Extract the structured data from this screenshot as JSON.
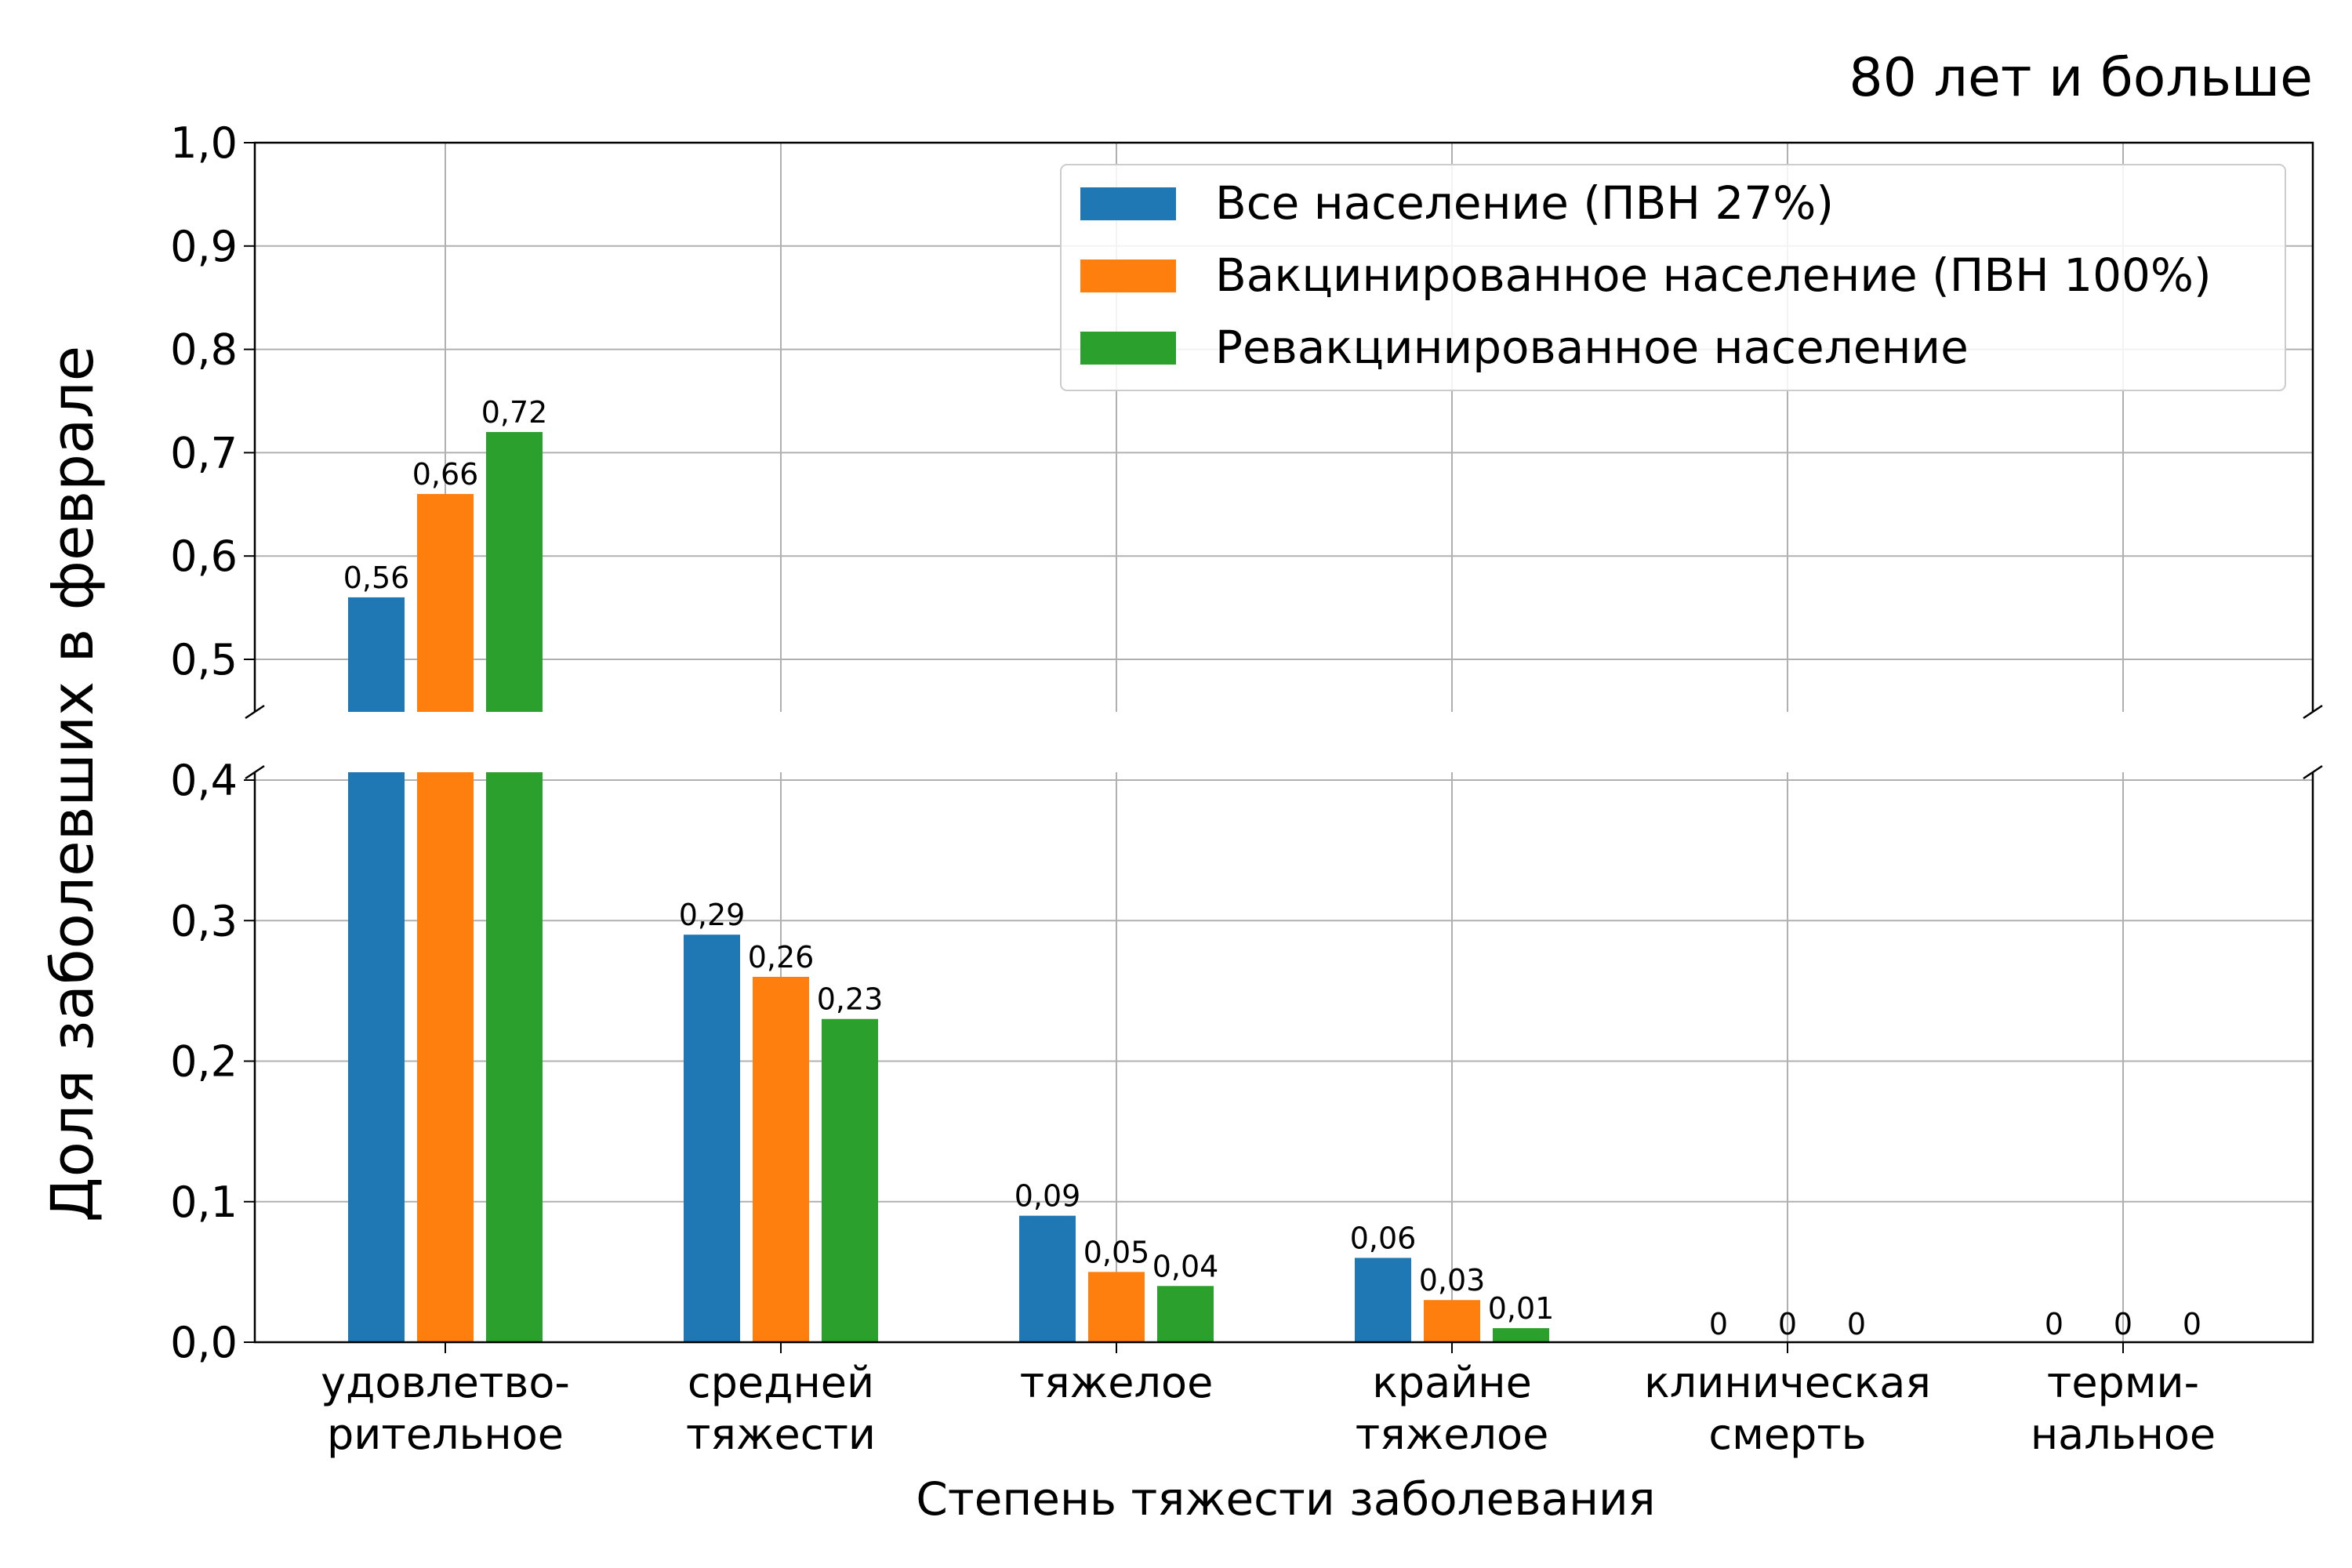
{
  "chart_data": {
    "type": "bar",
    "title": "80 лет и больше",
    "xlabel": "Степень тяжести заболевания",
    "ylabel": "Доля заболевших в феврале",
    "categories": [
      [
        "удовлетво-",
        "рительное"
      ],
      [
        "средней",
        "тяжести"
      ],
      [
        "тяжелое"
      ],
      [
        "крайне",
        "тяжелое"
      ],
      [
        "клиническая",
        "смерть"
      ],
      [
        "терми-",
        "нальное"
      ]
    ],
    "series": [
      {
        "name": "Все население (ПВН 27%)",
        "color": "#1f77b4",
        "values": [
          0.56,
          0.29,
          0.09,
          0.06,
          0,
          0
        ],
        "labels": [
          "0,56",
          "0,29",
          "0,09",
          "0,06",
          "0",
          "0"
        ]
      },
      {
        "name": "Вакцинированное население (ПВН 100%)",
        "color": "#ff7f0e",
        "values": [
          0.66,
          0.26,
          0.05,
          0.03,
          0,
          0
        ],
        "labels": [
          "0,66",
          "0,26",
          "0,05",
          "0,03",
          "0",
          "0"
        ]
      },
      {
        "name": "Ревакцинированное население",
        "color": "#2ca02c",
        "values": [
          0.72,
          0.23,
          0.04,
          0.01,
          0,
          0
        ],
        "labels": [
          "0,72",
          "0,23",
          "0,04",
          "0,01",
          "0",
          "0"
        ]
      }
    ],
    "axis_break": {
      "lower_ylim": [
        0,
        0.4
      ],
      "upper_ylim": [
        0.45,
        1.0
      ]
    },
    "yticks_lower": [
      "0,0",
      "0,1",
      "0,2",
      "0,3",
      "0,4"
    ],
    "yticks_upper": [
      "0,5",
      "0,6",
      "0,7",
      "0,8",
      "0,9",
      "1,0"
    ],
    "grid": true,
    "legend_position": "top-right"
  }
}
